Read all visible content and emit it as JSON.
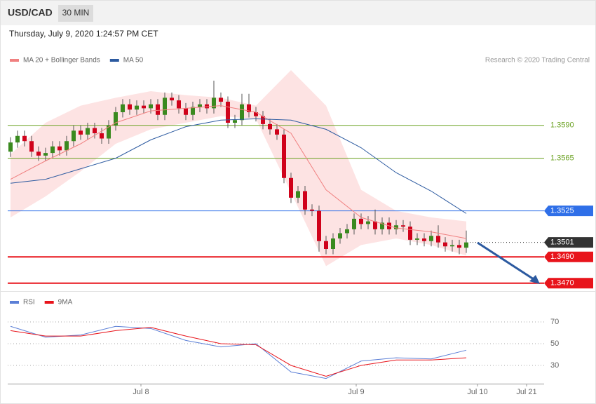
{
  "header": {
    "symbol": "USD/CAD",
    "timeframe": "30 MIN",
    "datetime": "Thursday, July 9, 2020 1:24:57 PM CET"
  },
  "chart_data": [
    {
      "type": "candlestick",
      "source": "Research © 2020 Trading Central",
      "up_color": "#3a8a1f",
      "down_color": "#d0021b",
      "open": [
        1.357,
        1.3577,
        1.3582,
        1.3578,
        1.357,
        1.3567,
        1.3569,
        1.3574,
        1.3571,
        1.3578,
        1.3586,
        1.3583,
        1.3588,
        1.3584,
        1.358,
        1.359,
        1.36,
        1.3606,
        1.3602,
        1.3605,
        1.3603,
        1.3606,
        1.3598,
        1.3611,
        1.3609,
        1.3603,
        1.3598,
        1.3604,
        1.3606,
        1.3603,
        1.3611,
        1.3608,
        1.3592,
        1.3594,
        1.3606,
        1.36,
        1.3597,
        1.3591,
        1.3587,
        1.3583,
        1.355,
        1.3535,
        1.354,
        1.3526,
        1.3525,
        1.3502,
        1.3496,
        1.3504,
        1.3508,
        1.3511,
        1.3519,
        1.3515,
        1.3517,
        1.3511,
        1.3516,
        1.3511,
        1.3514,
        1.3513,
        1.3503,
        1.3504,
        1.3502,
        1.3506,
        1.3501,
        1.3498,
        1.3499,
        1.3497
      ],
      "high": [
        1.3581,
        1.3586,
        1.3586,
        1.3582,
        1.3574,
        1.3573,
        1.3578,
        1.3578,
        1.3582,
        1.359,
        1.359,
        1.3592,
        1.3592,
        1.3588,
        1.3594,
        1.3604,
        1.361,
        1.361,
        1.3609,
        1.3609,
        1.361,
        1.361,
        1.3615,
        1.3615,
        1.3613,
        1.3607,
        1.3608,
        1.361,
        1.361,
        1.3624,
        1.3615,
        1.3612,
        1.3598,
        1.3614,
        1.3614,
        1.3604,
        1.3601,
        1.3595,
        1.3591,
        1.3587,
        1.3554,
        1.3544,
        1.3544,
        1.353,
        1.3529,
        1.3506,
        1.3508,
        1.3512,
        1.3515,
        1.3523,
        1.3523,
        1.3521,
        1.3526,
        1.352,
        1.352,
        1.3518,
        1.3518,
        1.3517,
        1.3508,
        1.3508,
        1.351,
        1.3514,
        1.3505,
        1.3503,
        1.3503,
        1.351
      ],
      "low": [
        1.3566,
        1.3573,
        1.3574,
        1.3566,
        1.3563,
        1.3563,
        1.3565,
        1.3567,
        1.3567,
        1.3574,
        1.3579,
        1.3579,
        1.358,
        1.3576,
        1.3576,
        1.3586,
        1.3596,
        1.3598,
        1.3598,
        1.3599,
        1.3599,
        1.3594,
        1.3594,
        1.3605,
        1.3599,
        1.3594,
        1.3594,
        1.36,
        1.3599,
        1.3599,
        1.3604,
        1.3588,
        1.3588,
        1.359,
        1.3596,
        1.3593,
        1.3587,
        1.3583,
        1.3579,
        1.3546,
        1.3531,
        1.3531,
        1.3522,
        1.3521,
        1.3494,
        1.3492,
        1.3492,
        1.35,
        1.3504,
        1.3507,
        1.3511,
        1.3511,
        1.3507,
        1.3507,
        1.3507,
        1.3507,
        1.3509,
        1.3499,
        1.3499,
        1.3498,
        1.3498,
        1.3497,
        1.3494,
        1.3494,
        1.3492,
        1.3493
      ],
      "close": [
        1.3577,
        1.3582,
        1.3578,
        1.357,
        1.3567,
        1.3569,
        1.3574,
        1.3571,
        1.3578,
        1.3586,
        1.3583,
        1.3588,
        1.3584,
        1.358,
        1.359,
        1.36,
        1.3606,
        1.3602,
        1.3605,
        1.3603,
        1.3606,
        1.3598,
        1.3611,
        1.3609,
        1.3603,
        1.3598,
        1.3604,
        1.3606,
        1.3603,
        1.3611,
        1.3608,
        1.3592,
        1.3594,
        1.3606,
        1.36,
        1.3597,
        1.3591,
        1.3587,
        1.3583,
        1.355,
        1.3535,
        1.354,
        1.3526,
        1.3525,
        1.3502,
        1.3496,
        1.3504,
        1.3508,
        1.3511,
        1.3519,
        1.3515,
        1.3517,
        1.3511,
        1.3516,
        1.3511,
        1.3514,
        1.3513,
        1.3503,
        1.3504,
        1.3502,
        1.3506,
        1.3501,
        1.3498,
        1.3499,
        1.3497,
        1.3501
      ],
      "line_x": [
        0,
        5,
        10,
        15,
        20,
        25,
        30,
        35,
        40,
        45,
        50,
        55,
        60,
        65
      ],
      "series": [
        {
          "name": "MA 20 + Bollinger Bands",
          "color": "#f08080",
          "band_color": "#fde3e3",
          "values": [
            1.3549,
            1.3563,
            1.3576,
            1.3592,
            1.3601,
            1.3603,
            1.3605,
            1.36,
            1.3584,
            1.3541,
            1.352,
            1.3512,
            1.3509,
            1.3504
          ],
          "upper": [
            1.3568,
            1.3592,
            1.3605,
            1.3611,
            1.3616,
            1.3613,
            1.3611,
            1.3605,
            1.3632,
            1.3605,
            1.3541,
            1.3525,
            1.352,
            1.3517
          ],
          "lower": [
            1.352,
            1.3536,
            1.3555,
            1.3576,
            1.3587,
            1.3592,
            1.3597,
            1.3595,
            1.3539,
            1.3483,
            1.3499,
            1.3504,
            1.3499,
            1.3491
          ]
        },
        {
          "name": "MA 50",
          "color": "#2c5aa0",
          "values": [
            1.3546,
            1.3549,
            1.3557,
            1.3565,
            1.3579,
            1.3589,
            1.3594,
            1.3595,
            1.3594,
            1.3587,
            1.3573,
            1.3554,
            1.354,
            1.3523
          ]
        }
      ],
      "levels": [
        {
          "value": 1.359,
          "label": "1.3590",
          "color": "#6aa121",
          "boxed": false
        },
        {
          "value": 1.3565,
          "label": "1.3565",
          "color": "#6aa121",
          "boxed": false
        },
        {
          "value": 1.3525,
          "label": "1.3525",
          "color": "#2f6fe8",
          "boxed": true
        },
        {
          "value": 1.3501,
          "label": "1.3501",
          "color": "#333333",
          "boxed": true
        },
        {
          "value": 1.349,
          "label": "1.3490",
          "color": "#e8141b",
          "boxed": true
        },
        {
          "value": 1.347,
          "label": "1.3470",
          "color": "#e8141b",
          "boxed": true
        }
      ],
      "xlim": [
        -0.4,
        76.1
      ],
      "ylim": [
        1.3464,
        1.3664
      ]
    },
    {
      "type": "line",
      "x": [
        0,
        5,
        10,
        15,
        20,
        25,
        30,
        35,
        40,
        45,
        50,
        55,
        60,
        65
      ],
      "series": [
        {
          "name": "RSI",
          "color": "#5b7fd6",
          "values": [
            66,
            56,
            58,
            66,
            64,
            53,
            47,
            50,
            24,
            18,
            34,
            37,
            36,
            44
          ]
        },
        {
          "name": "9MA",
          "color": "#e8141b",
          "values": [
            62,
            57,
            57,
            62,
            65,
            57,
            50,
            49,
            30,
            20,
            30,
            35,
            35,
            37
          ]
        }
      ],
      "xlim": [
        -0.4,
        76.1
      ],
      "ylim": [
        14.5,
        95.2
      ],
      "yticks": [
        70,
        50,
        30
      ],
      "xticks": [
        {
          "value": 18.6,
          "label": "Jul 8"
        },
        {
          "value": 49.3,
          "label": "Jul 9"
        },
        {
          "value": 66.6,
          "label": "Jul 10"
        },
        {
          "value": 73.6,
          "label": "Jul 21"
        }
      ]
    }
  ]
}
